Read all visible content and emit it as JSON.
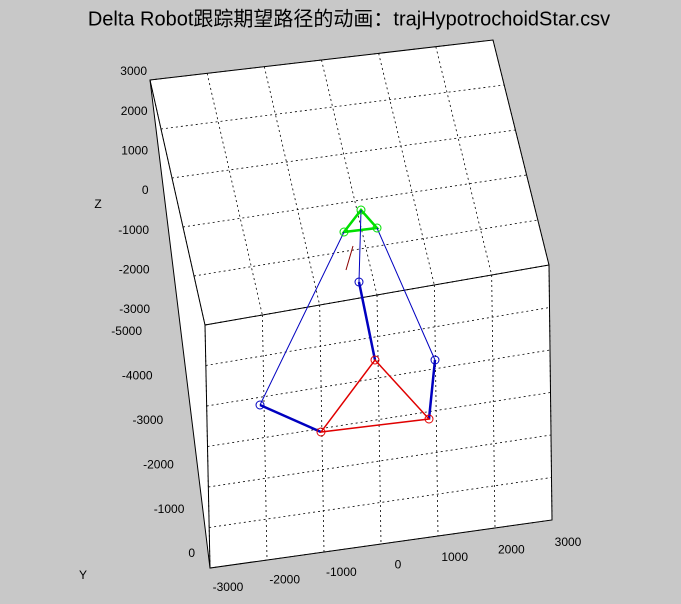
{
  "chart_data": {
    "type": "line3d",
    "title": "Delta Robot跟踪期望路径的动画：trajHypotrochoidStar.csv",
    "ylabel": "Y",
    "zlabel": "Z",
    "xlim": [
      -3000,
      3000
    ],
    "xticks": [
      -3000,
      -2000,
      -1000,
      0,
      1000,
      2000,
      3000
    ],
    "ylim": [
      -5000,
      0
    ],
    "yticks": [
      -5000,
      -4000,
      -3000,
      -2000,
      -1000,
      0
    ],
    "zlim": [
      -3000,
      3000
    ],
    "zticks": [
      -3000,
      -2000,
      -1000,
      0,
      1000,
      2000,
      3000
    ],
    "grid": true
  }
}
